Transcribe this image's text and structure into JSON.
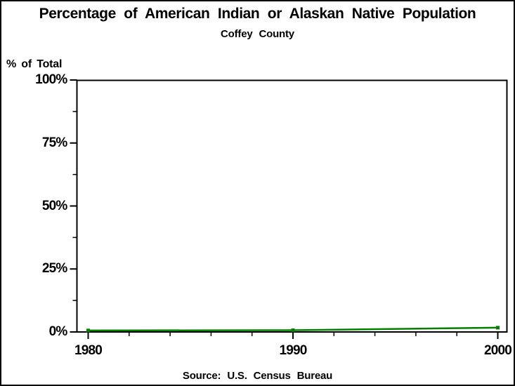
{
  "chart_data": {
    "type": "line",
    "title": "Percentage of American Indian or Alaskan Native Population",
    "subtitle": "Coffey County",
    "ylabel": "% of Total",
    "source": "Source: U.S. Census Bureau",
    "x": [
      1980,
      1990,
      2000
    ],
    "values": [
      0.6,
      0.7,
      1.7
    ],
    "ylim": [
      0,
      100
    ],
    "xlim": [
      1980,
      2000
    ],
    "y_ticks": [
      {
        "value": 0,
        "label": "0%"
      },
      {
        "value": 25,
        "label": "25%"
      },
      {
        "value": 50,
        "label": "50%"
      },
      {
        "value": 75,
        "label": "75%"
      },
      {
        "value": 100,
        "label": "100%"
      }
    ],
    "y_minor_ticks": [
      12.5,
      37.5,
      62.5,
      87.5
    ],
    "x_ticks": [
      {
        "value": 1980,
        "label": "1980"
      },
      {
        "value": 1990,
        "label": "1990"
      },
      {
        "value": 2000,
        "label": "2000"
      }
    ],
    "x_minor_ticks": [
      1982,
      1984,
      1986,
      1988,
      1992,
      1994,
      1996,
      1998
    ],
    "grid": false,
    "legend": "none",
    "marker": "square",
    "marker_size": 5,
    "line_color": "#008000",
    "axis_color": "#000000",
    "frame": true
  }
}
